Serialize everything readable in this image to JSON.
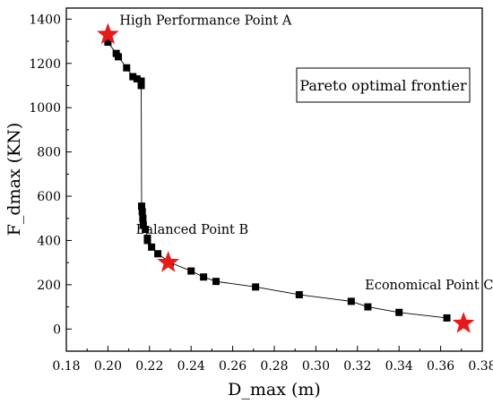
{
  "chart_data": {
    "type": "scatter",
    "xlabel": "D_max (m)",
    "ylabel": "F_dmax (KN)",
    "xlim": [
      0.18,
      0.38
    ],
    "ylim": [
      -100,
      1450
    ],
    "x_ticks": [
      "0.18",
      "0.20",
      "0.22",
      "0.24",
      "0.26",
      "0.28",
      "0.30",
      "0.32",
      "0.34",
      "0.36",
      "0.38"
    ],
    "y_ticks": [
      "0",
      "200",
      "400",
      "600",
      "800",
      "1000",
      "1200",
      "1400"
    ],
    "legend_box": "Pareto optimal frontier",
    "series": [
      {
        "marker": "square",
        "color": "#000000",
        "x": [
          0.2,
          0.204,
          0.205,
          0.209,
          0.212,
          0.214,
          0.216,
          0.216,
          0.2162,
          0.2165,
          0.2168,
          0.217,
          0.218,
          0.219,
          0.219,
          0.221,
          0.224,
          0.23,
          0.24,
          0.246,
          0.252,
          0.271,
          0.292,
          0.317,
          0.325,
          0.34,
          0.363
        ],
        "y": [
          1296,
          1245,
          1230,
          1180,
          1140,
          1130,
          1120,
          1100,
          555,
          530,
          500,
          470,
          450,
          410,
          400,
          370,
          340,
          300,
          262,
          235,
          215,
          190,
          155,
          125,
          100,
          75,
          50
        ]
      }
    ],
    "highlighted_points": [
      {
        "label": "High Performance Point A",
        "x": 0.2,
        "y": 1330
      },
      {
        "label": "Balanced Point B",
        "x": 0.229,
        "y": 300
      },
      {
        "label": "Economical Point C",
        "x": 0.371,
        "y": 25
      }
    ],
    "colors": {
      "highlight": "#e8191a",
      "line": "#000000"
    }
  }
}
